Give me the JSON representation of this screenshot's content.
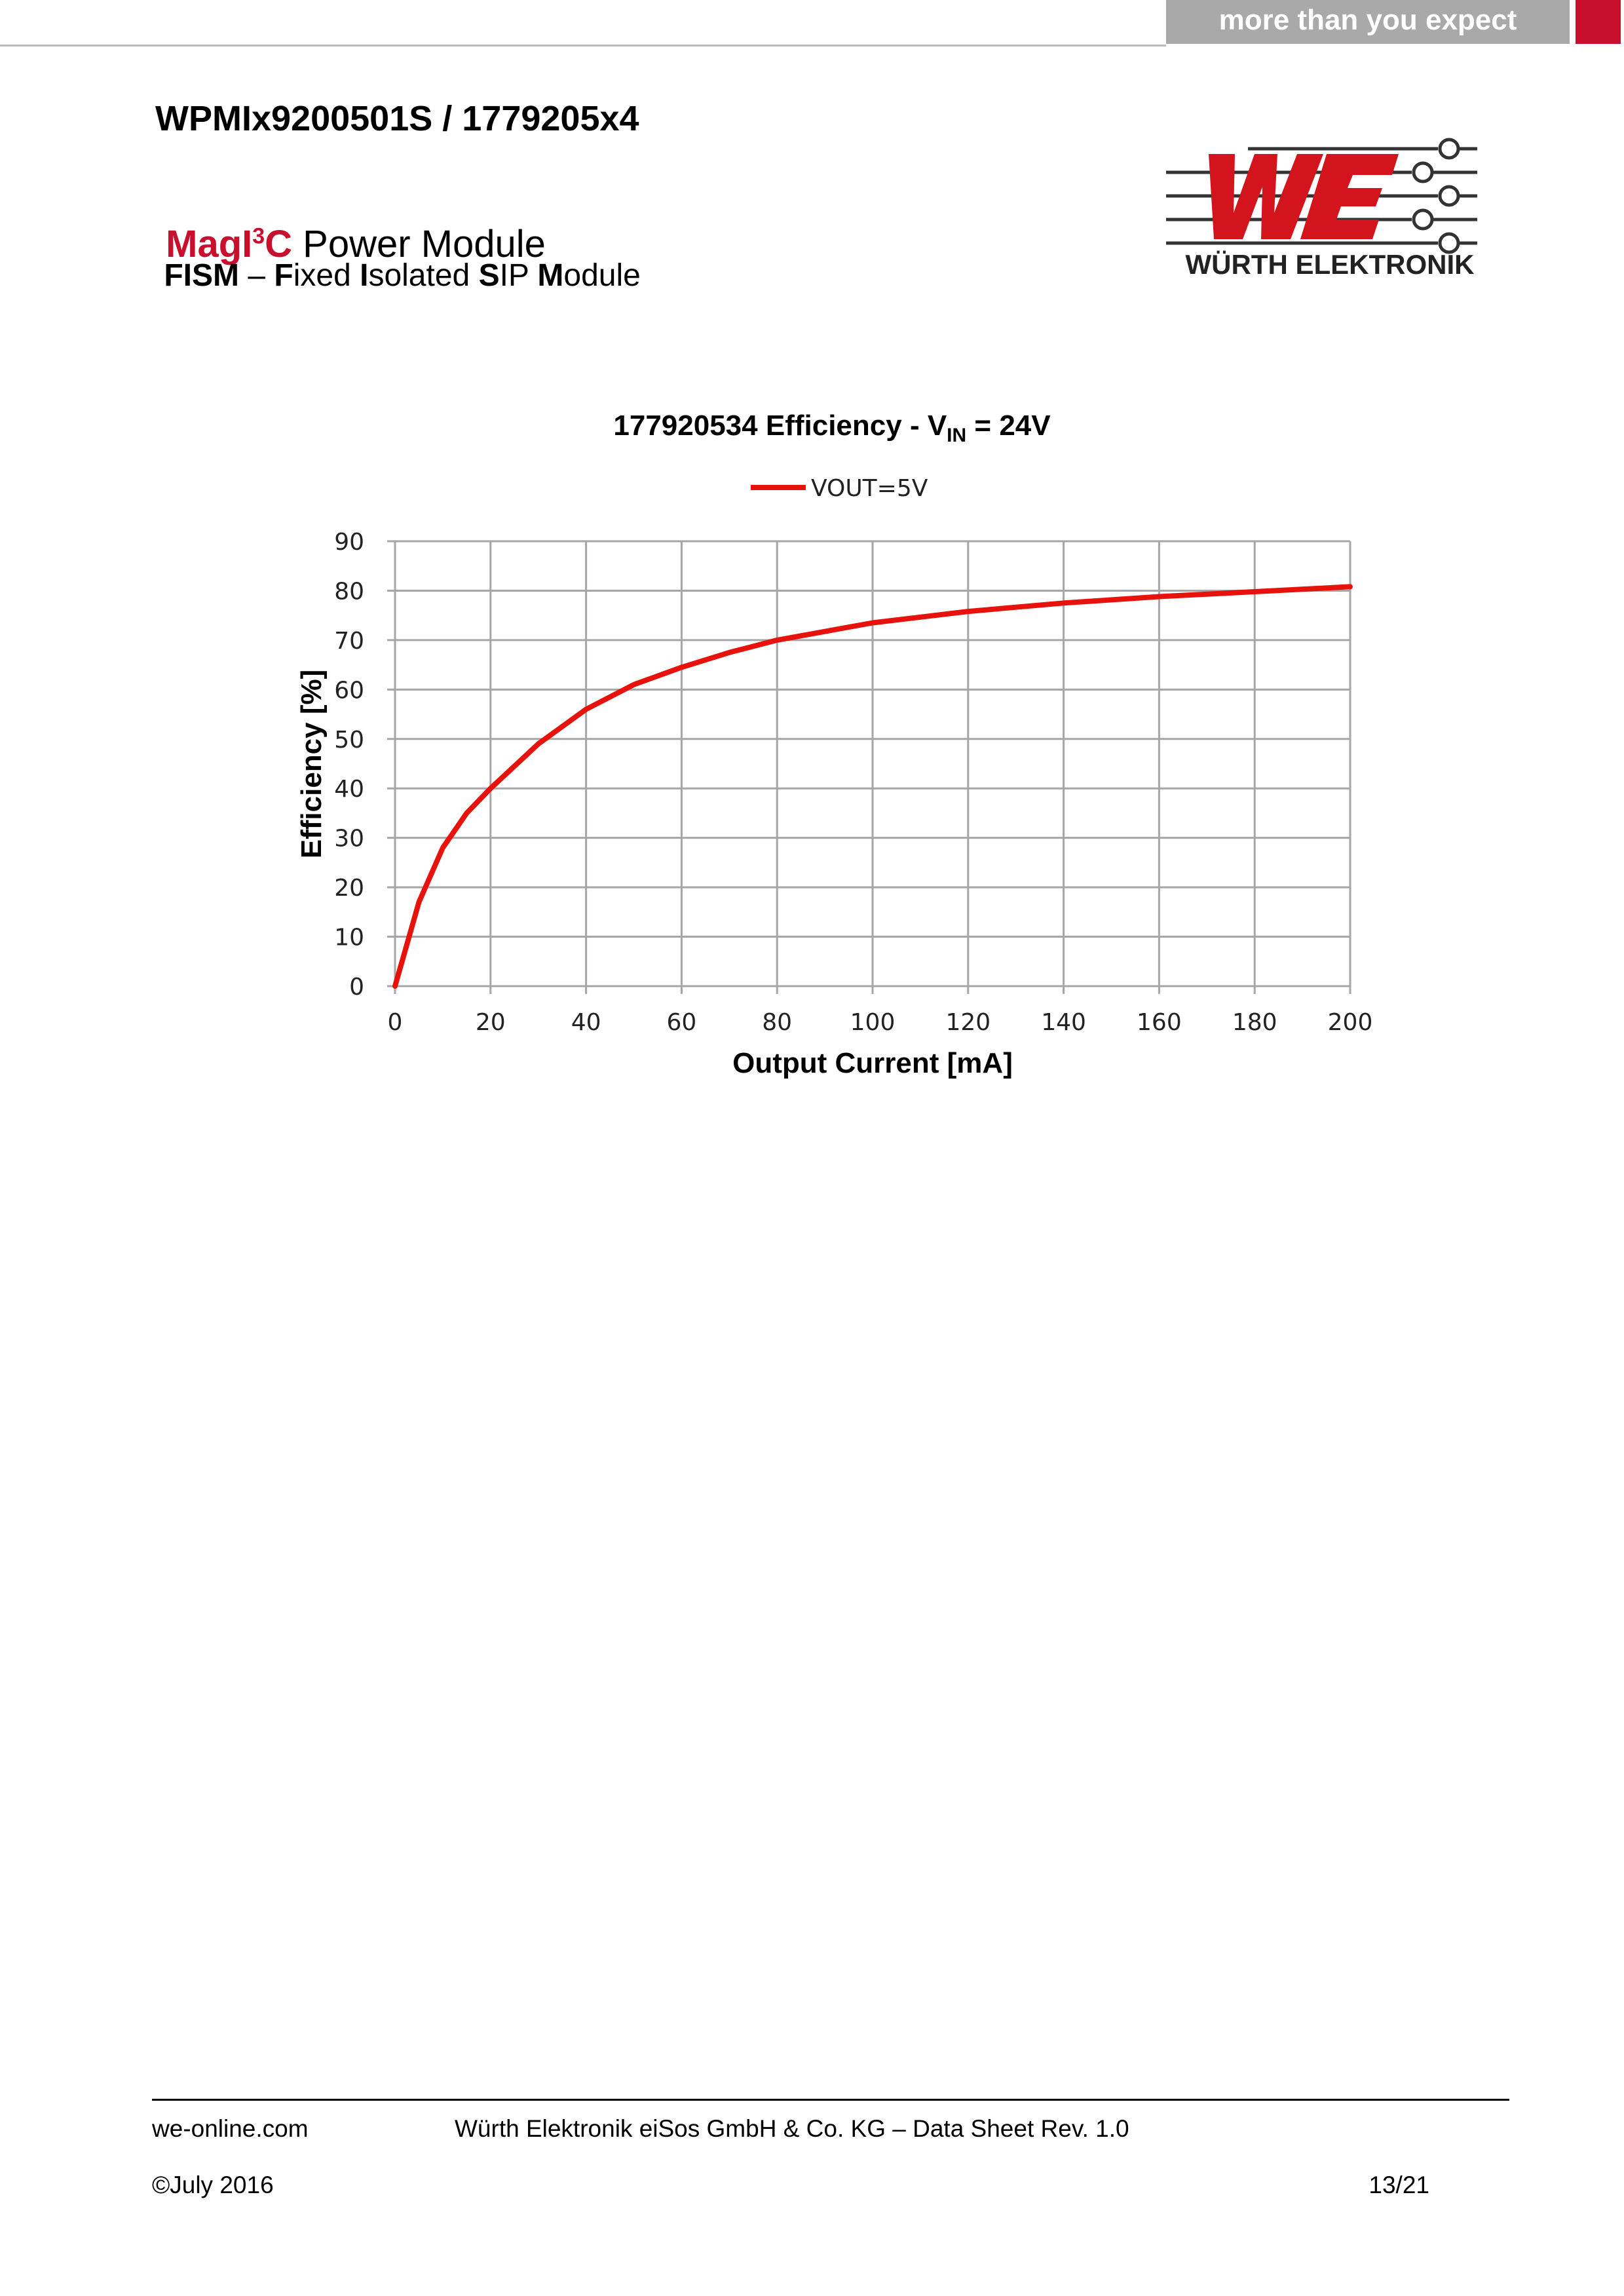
{
  "banner": "more than you expect",
  "header": {
    "title": "WPMIx9200501S / 1779205x4",
    "product_parts": [
      "MagI",
      "3",
      "C",
      " Power Module"
    ],
    "subtitle_parts": [
      "FISM",
      " – ",
      "F",
      "ixed ",
      "I",
      "solated ",
      "S",
      "IP ",
      "M",
      "odule"
    ],
    "logo_text": "WÜRTH ELEKTRONIK"
  },
  "chart_data": {
    "type": "line",
    "title_parts": [
      "177920534  Efficiency - V",
      "IN",
      " = 24V"
    ],
    "x_label": "Output Current [mA]",
    "y_label": "Efficiency [%]",
    "x": [
      0,
      5,
      10,
      15,
      20,
      30,
      40,
      50,
      60,
      70,
      80,
      100,
      120,
      140,
      160,
      180,
      200
    ],
    "series": [
      {
        "name": "VOUT=5V",
        "color": "#e8120c",
        "values": [
          0,
          17,
          28,
          35,
          40,
          49,
          56,
          61,
          64.5,
          67.5,
          70,
          73.5,
          75.8,
          77.5,
          78.8,
          79.8,
          80.8
        ]
      }
    ],
    "xlim": [
      0,
      200
    ],
    "xticks": [
      0,
      20,
      40,
      60,
      80,
      100,
      120,
      140,
      160,
      180,
      200
    ],
    "ylim": [
      0,
      90
    ],
    "yticks": [
      0,
      10,
      20,
      30,
      40,
      50,
      60,
      70,
      80,
      90
    ],
    "grid": true,
    "legend": "top"
  },
  "footer": {
    "website": "we-online.com",
    "company": "Würth Elektronik eiSos GmbH & Co. KG – Data Sheet Rev. 1.0",
    "date": "©July 2016",
    "page": "13/21"
  }
}
